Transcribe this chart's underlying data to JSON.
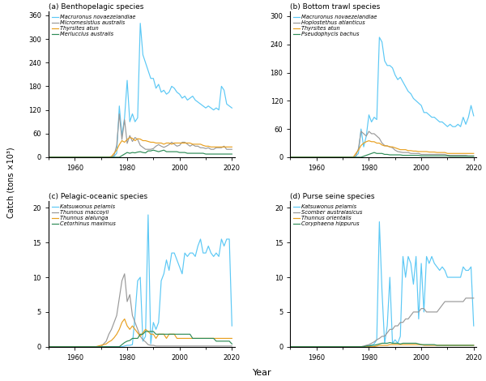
{
  "title_a": "(a) Benthopelagic species",
  "title_b": "(b) Bottom trawl species",
  "title_c": "(c) Pelagic-oceanic species",
  "title_d": "(d) Purse seine species",
  "ylabel": "Catch (tons ×10³)",
  "xlabel": "Year",
  "colors": {
    "cyan": "#5BC8F5",
    "gray": "#999999",
    "orange": "#E8A020",
    "green": "#2E8B57"
  },
  "years": [
    1950,
    1951,
    1952,
    1953,
    1954,
    1955,
    1956,
    1957,
    1958,
    1959,
    1960,
    1961,
    1962,
    1963,
    1964,
    1965,
    1966,
    1967,
    1968,
    1969,
    1970,
    1971,
    1972,
    1973,
    1974,
    1975,
    1976,
    1977,
    1978,
    1979,
    1980,
    1981,
    1982,
    1983,
    1984,
    1985,
    1986,
    1987,
    1988,
    1989,
    1990,
    1991,
    1992,
    1993,
    1994,
    1995,
    1996,
    1997,
    1998,
    1999,
    2000,
    2001,
    2002,
    2003,
    2004,
    2005,
    2006,
    2007,
    2008,
    2009,
    2010,
    2011,
    2012,
    2013,
    2014,
    2015,
    2016,
    2017,
    2018,
    2019,
    2020
  ],
  "a": {
    "legend": [
      "Macruronus novaezelandiae",
      "Micromesistius australis",
      "Thyrsites atun",
      "Merluccius australis"
    ],
    "macruronus": [
      0,
      0,
      0,
      0,
      0,
      0,
      0,
      0,
      0,
      0,
      0,
      0,
      0,
      0,
      0,
      0,
      0,
      0,
      0,
      0,
      0,
      0,
      0,
      0,
      0,
      2,
      10,
      130,
      55,
      100,
      195,
      90,
      110,
      90,
      100,
      340,
      260,
      240,
      220,
      200,
      200,
      175,
      185,
      165,
      170,
      160,
      165,
      180,
      175,
      165,
      160,
      150,
      155,
      145,
      150,
      155,
      145,
      140,
      135,
      130,
      125,
      130,
      125,
      120,
      125,
      120,
      180,
      170,
      135,
      130,
      125
    ],
    "micromesistius": [
      0,
      0,
      0,
      0,
      0,
      0,
      0,
      0,
      0,
      0,
      0,
      0,
      0,
      0,
      0,
      0,
      0,
      0,
      0,
      0,
      0,
      0,
      0,
      0,
      0,
      5,
      30,
      110,
      45,
      95,
      35,
      55,
      40,
      50,
      45,
      30,
      25,
      20,
      20,
      20,
      22,
      28,
      32,
      28,
      25,
      28,
      32,
      38,
      33,
      28,
      30,
      38,
      38,
      33,
      28,
      32,
      28,
      28,
      24,
      24,
      22,
      24,
      20,
      20,
      24,
      24,
      24,
      28,
      20,
      20,
      20
    ],
    "thyrsites": [
      0,
      0,
      0,
      0,
      0,
      0,
      0,
      0,
      0,
      0,
      0,
      0,
      0,
      0,
      0,
      0,
      0,
      0,
      0,
      0,
      0,
      0,
      0,
      0,
      2,
      10,
      18,
      32,
      42,
      38,
      45,
      50,
      48,
      42,
      47,
      46,
      42,
      42,
      40,
      38,
      38,
      36,
      36,
      36,
      33,
      36,
      36,
      33,
      36,
      36,
      36,
      36,
      36,
      36,
      36,
      33,
      33,
      33,
      33,
      30,
      28,
      28,
      26,
      26,
      26,
      26,
      26,
      26,
      26,
      26,
      26
    ],
    "merluccius": [
      0,
      0,
      0,
      0,
      0,
      0,
      0,
      0,
      0,
      0,
      0,
      0,
      0,
      0,
      0,
      0,
      0,
      0,
      0,
      0,
      0,
      0,
      0,
      0,
      0,
      0,
      0,
      0,
      4,
      8,
      12,
      10,
      12,
      11,
      13,
      14,
      12,
      11,
      16,
      16,
      18,
      16,
      14,
      16,
      18,
      14,
      14,
      14,
      14,
      14,
      12,
      12,
      12,
      10,
      10,
      10,
      10,
      10,
      10,
      10,
      8,
      8,
      8,
      8,
      8,
      8,
      8,
      8,
      8,
      8,
      8
    ]
  },
  "b": {
    "legend": [
      "Macruronus novaezelandiae",
      "Hoplostethus atlanticus",
      "Thyrsites atun",
      "Pseudophycis bachus"
    ],
    "macruronus": [
      0,
      0,
      0,
      0,
      0,
      0,
      0,
      0,
      0,
      0,
      0,
      0,
      0,
      0,
      0,
      0,
      0,
      0,
      0,
      0,
      0,
      0,
      0,
      0,
      0,
      2,
      8,
      60,
      22,
      45,
      90,
      75,
      85,
      80,
      255,
      245,
      205,
      195,
      195,
      190,
      175,
      165,
      170,
      160,
      150,
      140,
      135,
      125,
      120,
      115,
      110,
      95,
      95,
      90,
      85,
      85,
      80,
      75,
      75,
      70,
      65,
      70,
      65,
      65,
      70,
      65,
      85,
      70,
      85,
      110,
      88
    ],
    "hoplostethus": [
      0,
      0,
      0,
      0,
      0,
      0,
      0,
      0,
      0,
      0,
      0,
      0,
      0,
      0,
      0,
      0,
      0,
      0,
      0,
      0,
      0,
      0,
      0,
      0,
      0,
      3,
      18,
      55,
      50,
      45,
      55,
      50,
      50,
      45,
      40,
      30,
      25,
      24,
      22,
      20,
      15,
      12,
      11,
      10,
      10,
      10,
      8,
      8,
      8,
      8,
      6,
      6,
      6,
      6,
      6,
      6,
      6,
      6,
      6,
      6,
      4,
      4,
      4,
      4,
      4,
      4,
      4,
      4,
      3,
      3,
      3
    ],
    "thyrsites": [
      0,
      0,
      0,
      0,
      0,
      0,
      0,
      0,
      0,
      0,
      0,
      0,
      0,
      0,
      0,
      0,
      0,
      0,
      0,
      0,
      0,
      0,
      0,
      0,
      0,
      8,
      15,
      25,
      30,
      33,
      35,
      33,
      33,
      30,
      30,
      26,
      24,
      24,
      22,
      22,
      20,
      18,
      16,
      16,
      16,
      14,
      14,
      13,
      13,
      12,
      12,
      12,
      12,
      11,
      11,
      11,
      10,
      10,
      10,
      10,
      8,
      8,
      8,
      8,
      8,
      8,
      8,
      8,
      8,
      8,
      8
    ],
    "pseudophycis": [
      0,
      0,
      0,
      0,
      0,
      0,
      0,
      0,
      0,
      0,
      0,
      0,
      0,
      0,
      0,
      0,
      0,
      0,
      0,
      0,
      0,
      0,
      0,
      0,
      0,
      0,
      0,
      0,
      2,
      4,
      6,
      8,
      10,
      8,
      8,
      8,
      6,
      6,
      5,
      5,
      5,
      5,
      5,
      4,
      4,
      4,
      4,
      4,
      4,
      4,
      3,
      3,
      3,
      3,
      3,
      3,
      3,
      3,
      3,
      3,
      3,
      2,
      2,
      2,
      2,
      2,
      2,
      2,
      2,
      2,
      2
    ]
  },
  "c": {
    "legend": [
      "Katsuwonus pelamis",
      "Thunnus maccoyii",
      "Thunnus alalunga",
      "Cetorhinus maximus"
    ],
    "katsuwonus": [
      0,
      0,
      0,
      0,
      0,
      0,
      0,
      0,
      0,
      0,
      0,
      0,
      0,
      0,
      0,
      0,
      0,
      0,
      0,
      0,
      0,
      0,
      0,
      0,
      0,
      0,
      0,
      0,
      0,
      0.1,
      0.2,
      0.2,
      0.3,
      4.5,
      9.5,
      10,
      0.8,
      1.5,
      19,
      0.4,
      3.5,
      2.5,
      3.5,
      9.5,
      10.5,
      12.5,
      11,
      13.5,
      13.5,
      12.5,
      11.5,
      10.5,
      13.5,
      13,
      13.5,
      13.5,
      13,
      14.5,
      15.5,
      13.5,
      13.5,
      14.5,
      13.5,
      13,
      13.5,
      13,
      15.5,
      14.5,
      15.5,
      15.5,
      3
    ],
    "thunnus_mac": [
      0,
      0,
      0,
      0,
      0,
      0,
      0,
      0,
      0,
      0,
      0,
      0,
      0,
      0,
      0,
      0,
      0,
      0,
      0,
      0,
      0,
      0.4,
      0.8,
      1.8,
      2.5,
      3.5,
      4.5,
      7,
      9.5,
      10.5,
      6.5,
      7.5,
      4.5,
      3.5,
      2.5,
      1.5,
      1.0,
      0.7,
      0.3,
      0.2,
      0.2,
      0.1,
      0.1,
      0.1,
      0.1,
      0.1,
      0.1,
      0.1,
      0.1,
      0.1,
      0.1,
      0.1,
      0.1,
      0.1,
      0.1,
      0.1,
      0.1,
      0.1,
      0.1,
      0.1,
      0.1,
      0.1,
      0.1,
      0.1,
      0.1,
      0.1,
      0.1,
      0.1,
      0.1,
      0.1,
      0.1
    ],
    "thunnus_ala": [
      0,
      0,
      0,
      0,
      0,
      0,
      0,
      0,
      0,
      0,
      0,
      0,
      0,
      0,
      0,
      0,
      0,
      0,
      0,
      0.1,
      0.2,
      0.3,
      0.4,
      0.7,
      0.9,
      1.3,
      1.8,
      2.5,
      3.5,
      4.0,
      3.0,
      2.5,
      3.0,
      2.5,
      2.0,
      1.5,
      2.0,
      2.5,
      2.2,
      1.8,
      1.8,
      1.2,
      1.8,
      1.8,
      1.8,
      1.2,
      1.8,
      1.8,
      1.8,
      1.2,
      1.2,
      1.2,
      1.2,
      1.2,
      1.2,
      1.2,
      1.2,
      1.2,
      1.2,
      1.2,
      1.2,
      1.2,
      1.2,
      1.2,
      1.2,
      1.2,
      1.2,
      1.2,
      1.2,
      1.2,
      1.2
    ],
    "cetorhinus": [
      0,
      0,
      0,
      0,
      0,
      0,
      0,
      0,
      0,
      0,
      0,
      0,
      0,
      0,
      0,
      0,
      0,
      0,
      0,
      0,
      0,
      0,
      0,
      0,
      0,
      0,
      0,
      0,
      0.3,
      0.6,
      0.8,
      0.9,
      1.2,
      1.2,
      1.2,
      1.8,
      1.8,
      2.2,
      2.2,
      2.2,
      2.2,
      1.8,
      1.8,
      1.8,
      1.8,
      1.8,
      1.8,
      1.8,
      1.8,
      1.8,
      1.8,
      1.8,
      1.8,
      1.8,
      1.8,
      1.2,
      1.2,
      1.2,
      1.2,
      1.2,
      1.2,
      1.2,
      1.2,
      1.2,
      0.8,
      0.8,
      0.8,
      0.8,
      0.8,
      0.8,
      0.4
    ]
  },
  "d": {
    "legend": [
      "Katsuwonus pelamis",
      "Scomber australasicus",
      "Thunnus orientalis",
      "Coryphaena hippurus"
    ],
    "katsuwonus": [
      0,
      0,
      0,
      0,
      0,
      0,
      0,
      0,
      0,
      0,
      0,
      0,
      0,
      0,
      0,
      0,
      0,
      0,
      0,
      0,
      0,
      0,
      0,
      0,
      0,
      0,
      0,
      0,
      0,
      0.1,
      0.2,
      0.2,
      0.4,
      1,
      18,
      8,
      0.5,
      3,
      10,
      0.5,
      1,
      0.5,
      1.5,
      13,
      10,
      13,
      12,
      9,
      13,
      4,
      12,
      5,
      13,
      12,
      13,
      12,
      11.5,
      11,
      11.5,
      11,
      10,
      10,
      10,
      10,
      10,
      10,
      11.5,
      11,
      11,
      11.5,
      3
    ],
    "scomber": [
      0,
      0,
      0,
      0,
      0,
      0,
      0,
      0,
      0,
      0,
      0,
      0,
      0,
      0,
      0,
      0,
      0,
      0,
      0,
      0,
      0,
      0,
      0,
      0,
      0,
      0,
      0,
      0,
      0.1,
      0.2,
      0.3,
      0.5,
      0.7,
      1.0,
      1.2,
      1.5,
      1.5,
      2.0,
      2.5,
      2.5,
      3.0,
      3.0,
      3.5,
      3.5,
      4.0,
      4.0,
      4.5,
      5.0,
      5.0,
      5.0,
      5.5,
      5.5,
      5.0,
      5.0,
      5.0,
      5.0,
      5.0,
      5.5,
      6.0,
      6.5,
      6.5,
      6.5,
      6.5,
      6.5,
      6.5,
      6.5,
      6.5,
      7.0,
      7.0,
      7.0,
      7.0
    ],
    "thunnus_ori": [
      0,
      0,
      0,
      0,
      0,
      0,
      0,
      0,
      0,
      0,
      0,
      0,
      0,
      0,
      0,
      0,
      0,
      0,
      0,
      0,
      0,
      0,
      0,
      0,
      0,
      0,
      0,
      0,
      0,
      0,
      0,
      0,
      0,
      0.1,
      0.2,
      0.2,
      0.2,
      0.2,
      0.3,
      0.3,
      0.3,
      0.3,
      0.3,
      0.3,
      0.3,
      0.3,
      0.3,
      0.3,
      0.3,
      0.3,
      0.3,
      0.2,
      0.2,
      0.2,
      0.2,
      0.2,
      0.2,
      0.2,
      0.2,
      0.2,
      0.2,
      0.2,
      0.2,
      0.2,
      0.2,
      0.2,
      0.2,
      0.2,
      0.2,
      0.2,
      0.2
    ],
    "coryphaena": [
      0,
      0,
      0,
      0,
      0,
      0,
      0,
      0,
      0,
      0,
      0,
      0,
      0,
      0,
      0,
      0,
      0,
      0,
      0,
      0,
      0,
      0,
      0,
      0,
      0,
      0,
      0,
      0,
      0,
      0.1,
      0.1,
      0.2,
      0.2,
      0.3,
      0.4,
      0.5,
      0.5,
      0.5,
      0.6,
      0.5,
      0.5,
      0.5,
      0.4,
      0.5,
      0.5,
      0.5,
      0.5,
      0.5,
      0.5,
      0.4,
      0.3,
      0.3,
      0.3,
      0.3,
      0.3,
      0.3,
      0.2,
      0.2,
      0.2,
      0.2,
      0.2,
      0.2,
      0.2,
      0.2,
      0.2,
      0.2,
      0.2,
      0.2,
      0.2,
      0.2,
      0.2
    ]
  }
}
